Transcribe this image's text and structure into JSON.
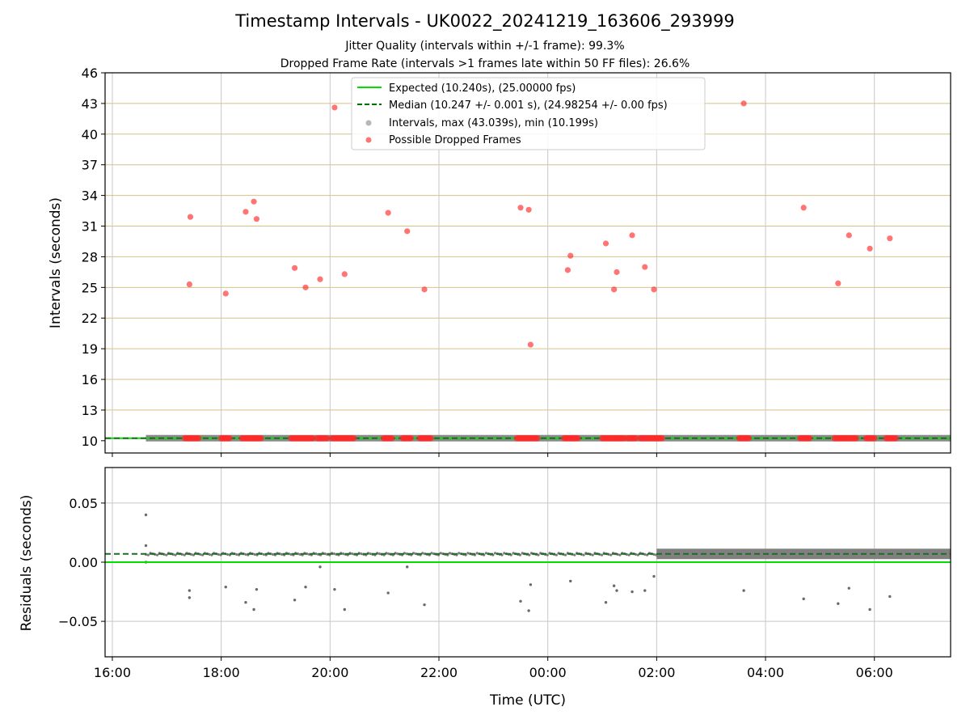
{
  "chart_data": [
    {
      "type": "scatter",
      "title": "Timestamp Intervals - UK0022_20241219_163606_293999",
      "subtitles": [
        "Jitter Quality (intervals within +/-1 frame): 99.3%",
        "Dropped Frame Rate (intervals >1 frames late within 50 FF files): 26.6%"
      ],
      "xlabel": "",
      "ylabel": "Intervals (seconds)",
      "xlim": [
        "15:52",
        "07:24"
      ],
      "ylim": [
        8.8,
        46
      ],
      "yticks": [
        10,
        13,
        16,
        19,
        22,
        25,
        28,
        31,
        34,
        37,
        40,
        43,
        46
      ],
      "grid": true,
      "legend_position": "top-center",
      "colors": {
        "expected": "#00e000",
        "median": "#007000",
        "intervals": "#999999",
        "dropped": "#ff2a2a"
      },
      "series": [
        {
          "name": "Expected (10.240s), (25.00000 fps)",
          "kind": "hline",
          "y": 10.24
        },
        {
          "name": "Median (10.247 +/- 0.001 s), (24.98254 +/- 0.00 fps)",
          "kind": "hline-dashed",
          "y": 10.247
        },
        {
          "name": "Intervals, max (43.039s), min (10.199s)",
          "kind": "scatter",
          "x_range": [
            "16:37",
            "07:24"
          ],
          "y_typical": 10.247
        },
        {
          "name": "Possible Dropped Frames",
          "kind": "scatter",
          "points": [
            {
              "x": "17:25",
              "y": 25.3
            },
            {
              "x": "17:26",
              "y": 31.9
            },
            {
              "x": "18:05",
              "y": 24.4
            },
            {
              "x": "18:27",
              "y": 32.4
            },
            {
              "x": "18:36",
              "y": 33.4
            },
            {
              "x": "18:39",
              "y": 31.7
            },
            {
              "x": "19:21",
              "y": 26.9
            },
            {
              "x": "19:33",
              "y": 25.0
            },
            {
              "x": "19:49",
              "y": 25.8
            },
            {
              "x": "20:05",
              "y": 42.6
            },
            {
              "x": "20:16",
              "y": 26.3
            },
            {
              "x": "21:04",
              "y": 32.3
            },
            {
              "x": "21:25",
              "y": 30.5
            },
            {
              "x": "21:44",
              "y": 24.8
            },
            {
              "x": "23:30",
              "y": 32.8
            },
            {
              "x": "23:39",
              "y": 32.6
            },
            {
              "x": "23:41",
              "y": 19.4
            },
            {
              "x": "00:22",
              "y": 26.7
            },
            {
              "x": "00:25",
              "y": 28.1
            },
            {
              "x": "01:04",
              "y": 29.3
            },
            {
              "x": "01:13",
              "y": 24.8
            },
            {
              "x": "01:16",
              "y": 26.5
            },
            {
              "x": "01:33",
              "y": 30.1
            },
            {
              "x": "01:47",
              "y": 27.0
            },
            {
              "x": "01:57",
              "y": 24.8
            },
            {
              "x": "03:36",
              "y": 43.0
            },
            {
              "x": "04:42",
              "y": 32.8
            },
            {
              "x": "05:20",
              "y": 25.4
            },
            {
              "x": "05:32",
              "y": 30.1
            },
            {
              "x": "05:55",
              "y": 28.8
            },
            {
              "x": "06:17",
              "y": 29.8
            }
          ],
          "baseline_clusters": [
            [
              "17:20",
              "17:35"
            ],
            [
              "18:00",
              "18:10"
            ],
            [
              "18:23",
              "18:45"
            ],
            [
              "19:17",
              "19:42"
            ],
            [
              "19:46",
              "19:57"
            ],
            [
              "20:02",
              "20:26"
            ],
            [
              "20:59",
              "21:08"
            ],
            [
              "21:20",
              "21:30"
            ],
            [
              "21:39",
              "21:51"
            ],
            [
              "23:26",
              "23:49"
            ],
            [
              "00:18",
              "00:33"
            ],
            [
              "01:00",
              "01:24"
            ],
            [
              "01:28",
              "01:38"
            ],
            [
              "01:42",
              "02:06"
            ],
            [
              "03:31",
              "03:42"
            ],
            [
              "04:38",
              "04:49"
            ],
            [
              "05:16",
              "05:40"
            ],
            [
              "05:51",
              "06:01"
            ],
            [
              "06:13",
              "06:24"
            ]
          ]
        }
      ]
    },
    {
      "type": "scatter",
      "xlabel": "Time (UTC)",
      "ylabel": "Residuals (seconds)",
      "xlim": [
        "15:52",
        "07:24"
      ],
      "ylim": [
        -0.08,
        0.08
      ],
      "yticks": [
        0.05,
        0.0,
        -0.05
      ],
      "ytick_labels": [
        "0.05",
        "0.00",
        "−0.05"
      ],
      "xticks": [
        "16:00",
        "18:00",
        "20:00",
        "22:00",
        "00:00",
        "02:00",
        "04:00",
        "06:00"
      ],
      "grid": true,
      "series": [
        {
          "kind": "hline",
          "y": 0.0
        },
        {
          "kind": "hline-dashed",
          "y": 0.007
        },
        {
          "kind": "scatter",
          "baseline": 0.007,
          "spread": 0.002,
          "outliers": [
            {
              "x": "16:37",
              "y": 0.04
            },
            {
              "x": "16:37",
              "y": 0.014
            },
            {
              "x": "16:37",
              "y": 0.0
            },
            {
              "x": "17:25",
              "y": -0.024
            },
            {
              "x": "17:25",
              "y": -0.03
            },
            {
              "x": "18:05",
              "y": -0.021
            },
            {
              "x": "18:27",
              "y": -0.034
            },
            {
              "x": "18:36",
              "y": -0.04
            },
            {
              "x": "18:39",
              "y": -0.023
            },
            {
              "x": "19:21",
              "y": -0.032
            },
            {
              "x": "19:33",
              "y": -0.021
            },
            {
              "x": "19:49",
              "y": -0.004
            },
            {
              "x": "20:05",
              "y": -0.023
            },
            {
              "x": "20:16",
              "y": -0.04
            },
            {
              "x": "21:04",
              "y": -0.026
            },
            {
              "x": "21:25",
              "y": -0.004
            },
            {
              "x": "21:44",
              "y": -0.036
            },
            {
              "x": "23:30",
              "y": -0.033
            },
            {
              "x": "23:39",
              "y": -0.041
            },
            {
              "x": "23:41",
              "y": -0.019
            },
            {
              "x": "00:25",
              "y": -0.016
            },
            {
              "x": "01:04",
              "y": -0.034
            },
            {
              "x": "01:13",
              "y": -0.02
            },
            {
              "x": "01:16",
              "y": -0.024
            },
            {
              "x": "01:33",
              "y": -0.025
            },
            {
              "x": "01:47",
              "y": -0.024
            },
            {
              "x": "01:57",
              "y": -0.012
            },
            {
              "x": "03:36",
              "y": -0.024
            },
            {
              "x": "04:42",
              "y": -0.031
            },
            {
              "x": "05:20",
              "y": -0.035
            },
            {
              "x": "05:32",
              "y": -0.022
            },
            {
              "x": "05:55",
              "y": -0.04
            },
            {
              "x": "06:17",
              "y": -0.029
            }
          ]
        }
      ]
    }
  ]
}
